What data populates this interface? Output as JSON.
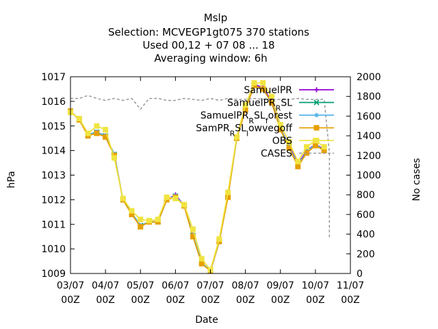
{
  "chart_data": {
    "type": "line",
    "title": "Mslp",
    "subtitle": [
      "Selection: MCVEGP1gt075    370 stations",
      "Used  00,12  + 07 08 ... 18",
      "Averaging window:  6h"
    ],
    "xlabel": "Date",
    "ylabel": "hPa",
    "y2label": "No cases",
    "xlim": [
      3,
      11
    ],
    "ylim": [
      1009,
      1017
    ],
    "y2lim": [
      0,
      2000
    ],
    "x_ticks": [
      {
        "value": 3,
        "line1": "03/07",
        "line2": "00Z"
      },
      {
        "value": 4,
        "line1": "04/07",
        "line2": "00Z"
      },
      {
        "value": 5,
        "line1": "05/07",
        "line2": "00Z"
      },
      {
        "value": 6,
        "line1": "06/07",
        "line2": "00Z"
      },
      {
        "value": 7,
        "line1": "07/07",
        "line2": "00Z"
      },
      {
        "value": 8,
        "line1": "08/07",
        "line2": "00Z"
      },
      {
        "value": 9,
        "line1": "09/07",
        "line2": "00Z"
      },
      {
        "value": 10,
        "line1": "10/07",
        "line2": "00Z"
      },
      {
        "value": 11,
        "line1": "11/07",
        "line2": "00Z"
      }
    ],
    "y_ticks": [
      1009,
      1010,
      1011,
      1012,
      1013,
      1014,
      1015,
      1016,
      1017
    ],
    "y2_ticks": [
      0,
      200,
      400,
      600,
      800,
      1000,
      1200,
      1400,
      1600,
      1800,
      2000
    ],
    "x": [
      3.0,
      3.25,
      3.5,
      3.75,
      4.0,
      4.25,
      4.5,
      4.75,
      5.0,
      5.25,
      5.5,
      5.75,
      6.0,
      6.25,
      6.5,
      6.75,
      7.0,
      7.25,
      7.5,
      7.75,
      8.0,
      8.25,
      8.5,
      8.75,
      9.0,
      9.25,
      9.5,
      9.75,
      10.0,
      10.25
    ],
    "series": [
      {
        "name": "SamuelPR",
        "color": "#9400d3",
        "marker": "plus",
        "values": [
          1015.6,
          1015.25,
          1014.65,
          1014.75,
          1014.6,
          1013.85,
          1012.0,
          1011.45,
          1010.95,
          1011.1,
          1011.1,
          1012.0,
          1012.2,
          1011.75,
          1010.55,
          1009.45,
          1009.1,
          1010.3,
          1012.15,
          1014.5,
          1015.7,
          1016.7,
          1016.55,
          1016.0,
          1014.9,
          1014.2,
          1013.45,
          1014.0,
          1014.25,
          1014.05
        ]
      },
      {
        "name": "SamuelPR_RSL",
        "color": "#009e73",
        "marker": "x",
        "values": [
          1015.6,
          1015.25,
          1014.65,
          1014.75,
          1014.6,
          1013.85,
          1012.0,
          1011.45,
          1010.95,
          1011.1,
          1011.1,
          1012.0,
          1012.15,
          1011.75,
          1010.55,
          1009.45,
          1009.1,
          1010.3,
          1012.15,
          1014.5,
          1015.7,
          1016.65,
          1016.5,
          1015.95,
          1014.9,
          1014.15,
          1013.4,
          1013.95,
          1014.25,
          1014.0
        ]
      },
      {
        "name": "SamuelPR_RSL_forest",
        "color": "#56b4e9",
        "marker": "star",
        "values": [
          1015.6,
          1015.25,
          1014.65,
          1014.75,
          1014.6,
          1013.85,
          1012.0,
          1011.45,
          1010.95,
          1011.1,
          1011.1,
          1012.0,
          1012.15,
          1011.75,
          1010.55,
          1009.45,
          1009.1,
          1010.3,
          1012.15,
          1014.5,
          1015.7,
          1016.65,
          1016.5,
          1015.95,
          1014.9,
          1014.15,
          1013.4,
          1013.95,
          1014.25,
          1014.0
        ]
      },
      {
        "name": "SamPR_RSL_lowvegoff",
        "color": "#e69f00",
        "marker": "box",
        "values": [
          1015.6,
          1015.25,
          1014.6,
          1014.7,
          1014.55,
          1013.8,
          1012.0,
          1011.4,
          1010.9,
          1011.1,
          1011.1,
          1012.0,
          1012.1,
          1011.75,
          1010.5,
          1009.4,
          1009.1,
          1010.3,
          1012.1,
          1014.5,
          1015.65,
          1016.65,
          1016.5,
          1015.95,
          1014.85,
          1014.1,
          1013.35,
          1013.9,
          1014.2,
          1014.0
        ]
      },
      {
        "name": "OBS",
        "color": "#f0e442",
        "marker": "box",
        "values": [
          1015.55,
          1015.3,
          1014.7,
          1015.0,
          1014.85,
          1013.7,
          1012.05,
          1011.55,
          1011.2,
          1011.15,
          1011.2,
          1012.1,
          1012.05,
          1011.8,
          1010.8,
          1009.6,
          1009.15,
          1010.4,
          1012.3,
          1014.55,
          1015.85,
          1016.75,
          1016.75,
          1016.2,
          1015.05,
          1014.35,
          1013.55,
          1014.15,
          1014.4,
          1014.15
        ]
      },
      {
        "name": "CASES",
        "color": "#999999",
        "dashed": true,
        "axis": "y2",
        "values": [
          1780,
          1780,
          1810,
          1780,
          1760,
          1780,
          1760,
          1780,
          1670,
          1780,
          1780,
          1760,
          1760,
          1780,
          1770,
          1760,
          1780,
          1760,
          1780,
          1770,
          1770,
          1780,
          1770,
          1770,
          1770,
          1770,
          1780,
          1770,
          1770,
          1770
        ]
      }
    ],
    "cases_drop": {
      "x": [
        10.25,
        10.4,
        10.4
      ],
      "values": [
        1770,
        1230,
        350
      ]
    },
    "legend_labels": [
      {
        "text": "SamuelPR"
      },
      {
        "text": "SamuelPR",
        "sub": "R",
        "tail": "SL"
      },
      {
        "text": "SamuelPR",
        "sub": "R",
        "tail": "SL",
        "sub2": "f",
        "tail2": "orest"
      },
      {
        "text": "SamPR",
        "sub": "R",
        "tail": "SL",
        "sub2": "l",
        "tail2": "owvegoff"
      },
      {
        "text": "OBS"
      },
      {
        "text": "CASES"
      }
    ],
    "legend_position": "top-right",
    "grid": false
  }
}
